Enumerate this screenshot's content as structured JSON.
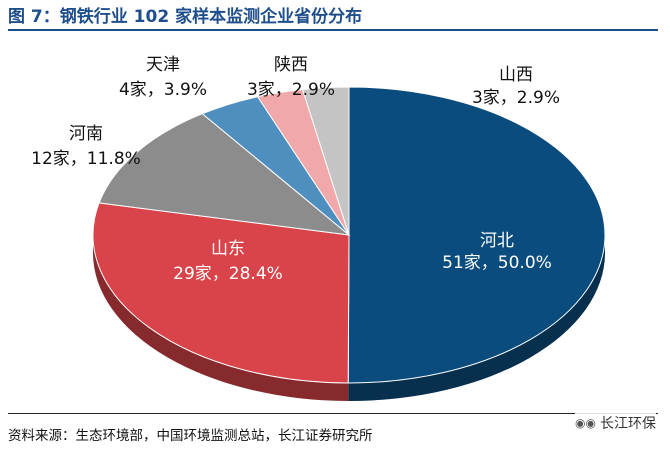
{
  "figure": {
    "title": "图 7：钢铁行业 102 家样本监测企业省份分布",
    "source": "资料来源：生态环境部，中国环境监测总站，长江证券研究所",
    "watermark": "长江环保",
    "watermark_icon": "wechat-icon"
  },
  "chart_data": {
    "type": "pie",
    "title": "",
    "unit": "家",
    "total": 102,
    "slices": [
      {
        "name": "河北",
        "count": 51,
        "percent": 50.0,
        "label": "51家，50.0%",
        "color": "#0b4c7e"
      },
      {
        "name": "山东",
        "count": 29,
        "percent": 28.4,
        "label": "29家，28.4%",
        "color": "#d9434a"
      },
      {
        "name": "河南",
        "count": 12,
        "percent": 11.8,
        "label": "12家，11.8%",
        "color": "#8c8c8c"
      },
      {
        "name": "天津",
        "count": 4,
        "percent": 3.9,
        "label": "4家，3.9%",
        "color": "#4f8fbf"
      },
      {
        "name": "陕西",
        "count": 3,
        "percent": 2.9,
        "label": "3家，2.9%",
        "color": "#f0a8aa"
      },
      {
        "name": "山西",
        "count": 3,
        "percent": 2.9,
        "label": "3家，2.9%",
        "color": "#c4c4c4"
      }
    ]
  }
}
